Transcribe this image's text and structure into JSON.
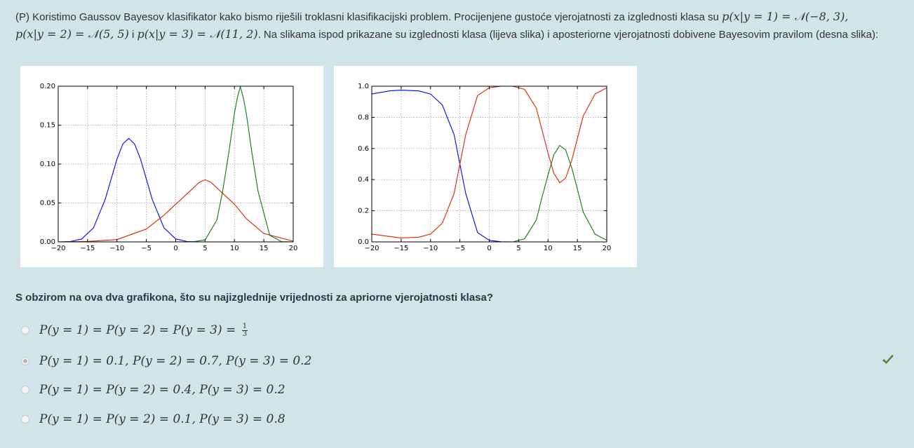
{
  "question": {
    "intro": "(P) Koristimo Gaussov Bayesov klasifikator kako bismo riješili troklasni klasifikacijski problem. Procijenjene gustoće vjerojatnosti za izglednosti klasa su ",
    "m1": "p(x|y = 1) = 𝒩(−8, 3),",
    "m2": "p(x|y = 2) = 𝒩(5, 5)",
    "and": " i ",
    "m3": "p(x|y = 3) = 𝒩(11, 2)",
    "tail": ". Na slikama ispod prikazane su izglednosti klasa (lijeva slika) i aposteriorne vjerojatnosti dobivene Bayesovim pravilom (desna slika):"
  },
  "prompt": "S obzirom na ova dva grafikona, što su najizglednije vrijednosti za apriorne vjerojatnosti klasa?",
  "options": [
    {
      "text": "P(y = 1) = P(y = 2) = P(y = 3) = ",
      "frac_num": "1",
      "frac_den": "3",
      "checked": false
    },
    {
      "text": "P(y = 1) = 0.1, P(y = 2) = 0.7, P(y = 3) = 0.2",
      "checked": true
    },
    {
      "text": "P(y = 1) = P(y = 2) = 0.4, P(y = 3) = 0.2",
      "checked": false
    },
    {
      "text": "P(y = 1) = P(y = 2) = 0.1, P(y = 3) = 0.8",
      "checked": false
    }
  ],
  "colors": {
    "class1": "#0000ff",
    "class2": "#dd2200",
    "class3": "#117711",
    "check": "#4a8a2a",
    "background": "#d0e4ea"
  },
  "chart_data": [
    {
      "type": "line",
      "title": "",
      "xlabel": "",
      "ylabel": "",
      "xlim": [
        -20,
        20
      ],
      "ylim": [
        0,
        0.2
      ],
      "xticks": [
        "−20",
        "−15",
        "−10",
        "−5",
        "0",
        "5",
        "10",
        "15",
        "20"
      ],
      "yticks": [
        "0.00",
        "0.05",
        "0.10",
        "0.15",
        "0.20"
      ],
      "grid": true,
      "series": [
        {
          "x": [
            -20,
            -18,
            -16,
            -14,
            -12,
            -10,
            -9,
            -8,
            -7,
            -6,
            -4,
            -2,
            0,
            2,
            4
          ],
          "y": [
            0.0,
            0.0004,
            0.0038,
            0.0181,
            0.0547,
            0.1065,
            0.1258,
            0.133,
            0.1258,
            0.1065,
            0.0547,
            0.0181,
            0.0038,
            0.0004,
            0.0
          ]
        },
        {
          "x": [
            -20,
            -15,
            -10,
            -5,
            -2,
            0,
            2,
            4,
            5,
            6,
            8,
            10,
            12,
            15,
            20
          ],
          "y": [
            0.0,
            0.0005,
            0.003,
            0.0165,
            0.0343,
            0.0484,
            0.0623,
            0.0765,
            0.0798,
            0.0765,
            0.0623,
            0.0484,
            0.0299,
            0.0108,
            0.0009
          ]
        },
        {
          "x": [
            0,
            3,
            5,
            7,
            8,
            9,
            10,
            10.5,
            11,
            11.5,
            12,
            13,
            14,
            16,
            18,
            20
          ],
          "y": [
            0.0,
            0.0002,
            0.0025,
            0.0279,
            0.0654,
            0.1131,
            0.1657,
            0.1854,
            0.1995,
            0.1854,
            0.1657,
            0.1131,
            0.0654,
            0.0086,
            0.0003,
            0.0
          ]
        }
      ]
    },
    {
      "type": "line",
      "title": "",
      "xlabel": "",
      "ylabel": "",
      "xlim": [
        -20,
        20
      ],
      "ylim": [
        0,
        1.0
      ],
      "xticks": [
        "−20",
        "−15",
        "−10",
        "−5",
        "0",
        "5",
        "10",
        "15",
        "20"
      ],
      "yticks": [
        "0.0",
        "0.2",
        "0.4",
        "0.6",
        "0.8",
        "1.0"
      ],
      "grid": true,
      "series": [
        {
          "x": [
            -20,
            -17,
            -15,
            -12,
            -10,
            -8,
            -6,
            -5,
            -4,
            -2,
            0,
            2,
            4,
            20
          ],
          "y": [
            0.95,
            0.97,
            0.975,
            0.97,
            0.95,
            0.88,
            0.69,
            0.5,
            0.31,
            0.06,
            0.01,
            0.001,
            0.0,
            0.0
          ]
        },
        {
          "x": [
            -20,
            -15,
            -12,
            -10,
            -8,
            -6,
            -5,
            -4,
            -2,
            0,
            2,
            4,
            6,
            8,
            10,
            11,
            12,
            13,
            14,
            16,
            18,
            20
          ],
          "y": [
            0.05,
            0.025,
            0.03,
            0.05,
            0.12,
            0.31,
            0.5,
            0.69,
            0.94,
            0.99,
            1.0,
            1.0,
            0.98,
            0.86,
            0.57,
            0.44,
            0.38,
            0.41,
            0.52,
            0.81,
            0.95,
            0.99
          ]
        },
        {
          "x": [
            -20,
            4,
            6,
            8,
            9,
            10,
            11,
            12,
            13,
            14,
            15,
            16,
            18,
            20
          ],
          "y": [
            0.0,
            0.0,
            0.02,
            0.14,
            0.29,
            0.43,
            0.56,
            0.62,
            0.59,
            0.48,
            0.34,
            0.19,
            0.05,
            0.01
          ]
        }
      ]
    }
  ]
}
